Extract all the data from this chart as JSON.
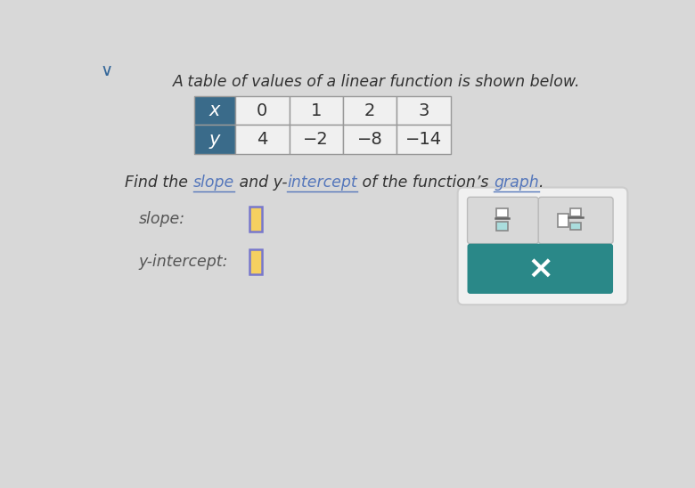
{
  "bg_color": "#d8d8d8",
  "title_text": "A table of values of a linear function is shown below.",
  "title_fontsize": 12.5,
  "title_color": "#333333",
  "table_x_values": [
    "x",
    "0",
    "1",
    "2",
    "3"
  ],
  "table_y_values": [
    "y",
    "4",
    "−2",
    "−8",
    "−14"
  ],
  "header_bg": "#3a6b8a",
  "header_text_color": "#ffffff",
  "cell_bg": "#f0f0f0",
  "cell_border": "#999999",
  "find_fontsize": 12.5,
  "find_normal_color": "#333333",
  "find_link_color": "#5577bb",
  "slope_label": "slope:",
  "intercept_label": "y-intercept:",
  "label_fontsize": 12.5,
  "label_color": "#555555",
  "input_box_fill": "#f5d060",
  "input_box_border": "#7777cc",
  "button_bg": "#2a8888",
  "button_text": "×",
  "panel_bg": "#e8e8e8",
  "panel_border": "#cccccc",
  "frac_btn_bg": "#d8d8d8",
  "frac_btn_border": "#bbbbbb",
  "frac_symbol_top_fill": "#ffffff",
  "frac_symbol_bot_fill": "#aadddd",
  "mix_symbol_bot_fill": "#aadddd"
}
